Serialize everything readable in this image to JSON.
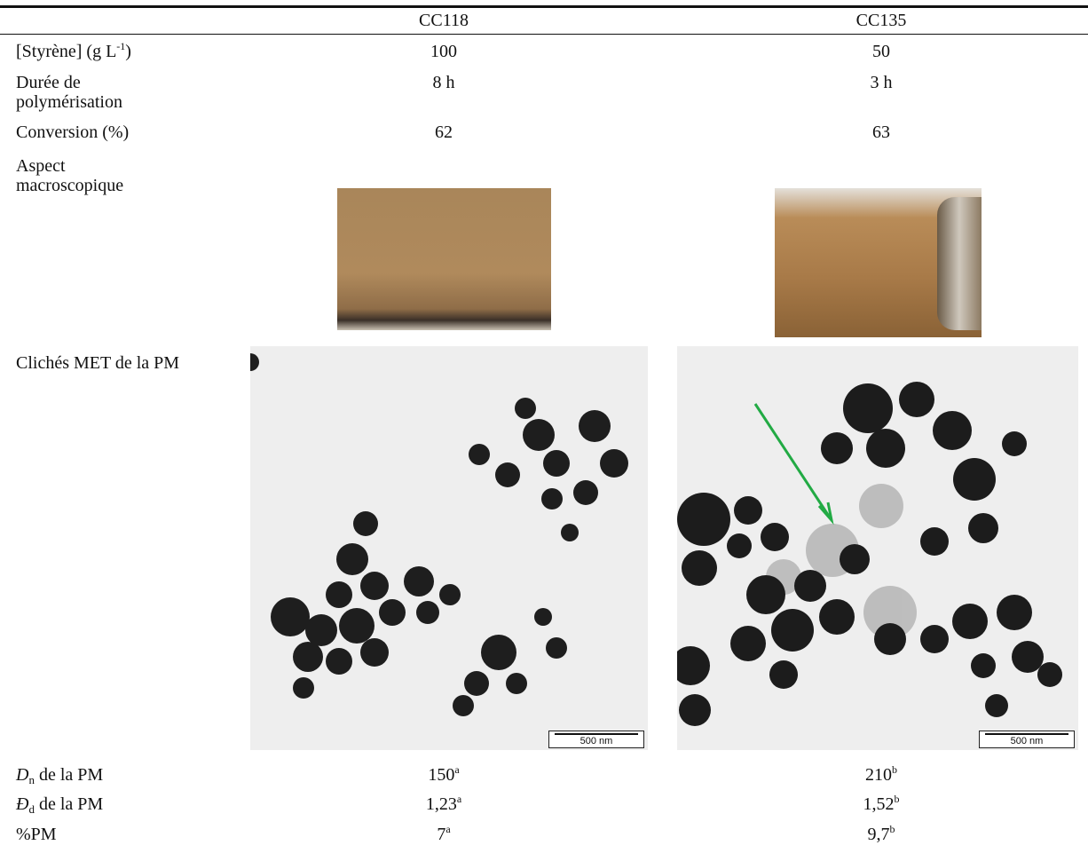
{
  "table": {
    "header": [
      "CC118",
      "CC135"
    ],
    "rows": [
      {
        "label": {
          "text": "[Styrène] (g L",
          "sup": "-1",
          "tail": ")"
        },
        "values": [
          "100",
          "50"
        ]
      },
      {
        "label": {
          "text": "Durée de polymérisation"
        },
        "values": [
          "8 h",
          "3 h"
        ]
      },
      {
        "label": {
          "text": "Conversion (%)"
        },
        "values": [
          "62",
          "63"
        ]
      },
      {
        "label": {
          "text": "Aspect macroscopique"
        }
      },
      {
        "label": {
          "text": "Clichés MET de la PM"
        },
        "scale_bars": [
          "500 nm",
          "500 nm"
        ]
      },
      {
        "label": {
          "symbol": "D",
          "sub": "n",
          "tail": " de la PM"
        },
        "values": [
          {
            "text": "150",
            "sup": "a"
          },
          {
            "text": "210",
            "sup": "b"
          }
        ]
      },
      {
        "label": {
          "symbol": "Đ",
          "sub": "d",
          "tail": " de la PM"
        },
        "values": [
          {
            "text": "1,23",
            "sup": "a"
          },
          {
            "text": "1,52",
            "sup": "b"
          }
        ]
      },
      {
        "label": {
          "text": "%PM"
        },
        "values": [
          {
            "text": "7",
            "sup": "a"
          },
          {
            "text": "9,7",
            "sup": "b"
          }
        ]
      }
    ]
  }
}
